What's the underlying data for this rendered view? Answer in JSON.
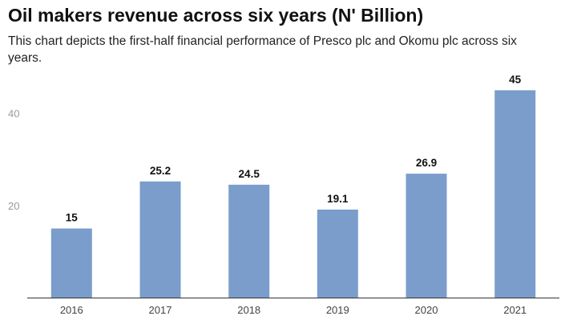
{
  "chart_data": {
    "type": "bar",
    "title": "Oil makers revenue across six years (N' Billion)",
    "subtitle": "This chart depicts the first-half financial performance of Presco plc and Okomu plc across six years.",
    "categories": [
      "2016",
      "2017",
      "2018",
      "2019",
      "2020",
      "2021"
    ],
    "values": [
      15,
      25.2,
      24.5,
      19.1,
      26.9,
      45
    ],
    "data_labels": [
      "15",
      "25.2",
      "24.5",
      "19.1",
      "26.9",
      "45"
    ],
    "xlabel": "",
    "ylabel": "",
    "ylim": [
      0,
      50
    ],
    "y_ticks": [
      20,
      40
    ],
    "y_tick_labels": [
      "20",
      "40"
    ],
    "grid": false,
    "legend": "none",
    "colors": {
      "bar": "#7b9dcb",
      "axis": "#333333"
    }
  }
}
